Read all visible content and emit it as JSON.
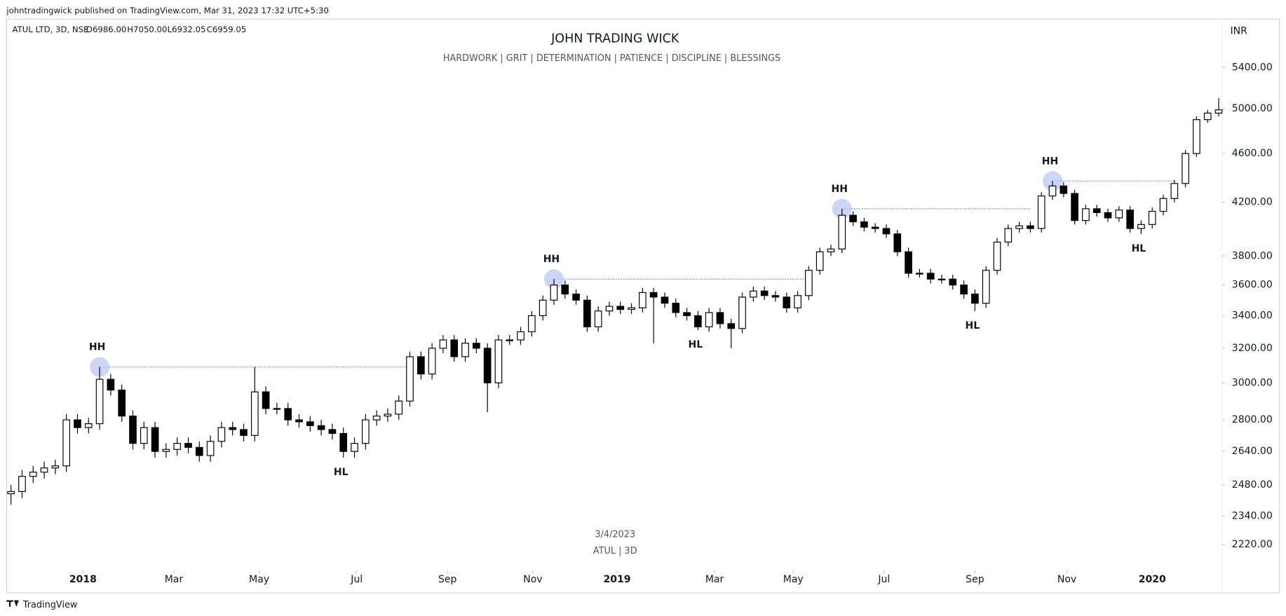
{
  "header": {
    "publisher": "johntradingwick published on TradingView.com, Mar 31, 2023 17:32 UTC+5:30",
    "footer": "TradingView"
  },
  "chart_data": {
    "type": "candlestick",
    "title": "JOHN TRADING WICK",
    "subtitle": "HARDWORK   |  GRIT  |  DETERMINATION   |   PATIENCE   |   DISCIPLINE  |  BLESSINGS",
    "symbol": "ATUL LTD, 3D, NSE",
    "ohlc_labels": [
      "O6986.00",
      "H7050.00",
      "L6932.05",
      "C6959.05"
    ],
    "currency": "INR",
    "watermark": [
      "3/4/2023",
      "ATUL  |  3D"
    ],
    "log_scale": true,
    "up_color": "#ffffff",
    "down_color": "#000000",
    "wick_color": "#000000",
    "level_color": "#6b8fd6",
    "circle_color": "#b9c8f2",
    "xlim": [
      -0.4,
      109.3
    ],
    "xticks": [
      {
        "value": 6.5,
        "label": "2018"
      },
      {
        "value": 14.7,
        "label": "Mar"
      },
      {
        "value": 22.4,
        "label": "May"
      },
      {
        "value": 31.2,
        "label": "Jul"
      },
      {
        "value": 39.4,
        "label": "Sep"
      },
      {
        "value": 47.1,
        "label": "Nov"
      },
      {
        "value": 54.7,
        "label": "2019"
      },
      {
        "value": 63.5,
        "label": "Mar"
      },
      {
        "value": 70.6,
        "label": "May"
      },
      {
        "value": 78.8,
        "label": "Jul"
      },
      {
        "value": 87.0,
        "label": "Sep"
      },
      {
        "value": 95.3,
        "label": "Nov"
      },
      {
        "value": 103.0,
        "label": "2020"
      }
    ],
    "ylim": [
      2130,
      5910
    ],
    "yticks": [
      {
        "value": 2220,
        "label": "2220.00"
      },
      {
        "value": 2340,
        "label": "2340.00"
      },
      {
        "value": 2480,
        "label": "2480.00"
      },
      {
        "value": 2640,
        "label": "2640.00"
      },
      {
        "value": 2800,
        "label": "2800.00"
      },
      {
        "value": 3000,
        "label": "3000.00"
      },
      {
        "value": 3200,
        "label": "3200.00"
      },
      {
        "value": 3400,
        "label": "3400.00"
      },
      {
        "value": 3600,
        "label": "3600.00"
      },
      {
        "value": 3800,
        "label": "3800.00"
      },
      {
        "value": 4200,
        "label": "4200.00"
      },
      {
        "value": 4600,
        "label": "4600.00"
      },
      {
        "value": 5000,
        "label": "5000.00"
      },
      {
        "value": 5400,
        "label": "5400.00"
      }
    ],
    "open": [
      2440,
      2450,
      2520,
      2540,
      2560,
      2570,
      2800,
      2760,
      2780,
      3020,
      2960,
      2820,
      2680,
      2760,
      2640,
      2650,
      2680,
      2660,
      2620,
      2690,
      2760,
      2750,
      2720,
      2950,
      2860,
      2860,
      2800,
      2790,
      2770,
      2750,
      2730,
      2640,
      2680,
      2800,
      2820,
      2830,
      2900,
      3150,
      3050,
      3200,
      3250,
      3150,
      3230,
      3200,
      3000,
      3250,
      3250,
      3300,
      3400,
      3500,
      3600,
      3540,
      3500,
      3330,
      3430,
      3460,
      3440,
      3450,
      3550,
      3520,
      3480,
      3420,
      3400,
      3330,
      3420,
      3350,
      3320,
      3520,
      3560,
      3530,
      3520,
      3450,
      3530,
      3700,
      3830,
      3850,
      4100,
      4050,
      4010,
      4000,
      3960,
      3830,
      3680,
      3680,
      3640,
      3640,
      3600,
      3540,
      3480,
      3700,
      3900,
      4000,
      4020,
      4000,
      4250,
      4330,
      4270,
      4060,
      4150,
      4120,
      4080,
      4140,
      4000,
      4030,
      4130,
      4230,
      4350,
      4600,
      4900,
      4960
    ],
    "high": [
      2480,
      2550,
      2570,
      2590,
      2600,
      2830,
      2830,
      2810,
      3090,
      3050,
      2990,
      2850,
      2790,
      2790,
      2680,
      2710,
      2710,
      2690,
      2720,
      2790,
      2790,
      2780,
      3090,
      2980,
      2890,
      2890,
      2830,
      2820,
      2800,
      2780,
      2760,
      2710,
      2830,
      2850,
      2860,
      2930,
      3180,
      3180,
      3230,
      3280,
      3280,
      3260,
      3260,
      3230,
      3280,
      3280,
      3330,
      3430,
      3530,
      3640,
      3630,
      3570,
      3530,
      3460,
      3490,
      3490,
      3480,
      3580,
      3580,
      3550,
      3510,
      3450,
      3430,
      3450,
      3450,
      3380,
      3550,
      3590,
      3590,
      3560,
      3550,
      3560,
      3730,
      3860,
      3880,
      4150,
      4130,
      4080,
      4040,
      4030,
      3990,
      3860,
      3710,
      3710,
      3670,
      3670,
      3630,
      3570,
      3730,
      3930,
      4030,
      4050,
      4050,
      4280,
      4370,
      4360,
      4300,
      4180,
      4180,
      4150,
      4170,
      4170,
      4060,
      4160,
      4260,
      4380,
      4630,
      4930,
      4990,
      5100
    ],
    "low": [
      2390,
      2420,
      2490,
      2510,
      2530,
      2540,
      2730,
      2730,
      2750,
      2930,
      2790,
      2650,
      2650,
      2610,
      2610,
      2620,
      2630,
      2590,
      2590,
      2660,
      2720,
      2690,
      2690,
      2830,
      2830,
      2770,
      2760,
      2740,
      2720,
      2700,
      2610,
      2610,
      2650,
      2770,
      2790,
      2800,
      2870,
      3020,
      3020,
      3170,
      3120,
      3120,
      3170,
      2840,
      2970,
      3220,
      3220,
      3270,
      3370,
      3470,
      3510,
      3470,
      3300,
      3300,
      3400,
      3410,
      3410,
      3420,
      3230,
      3450,
      3390,
      3370,
      3310,
      3300,
      3320,
      3200,
      3290,
      3490,
      3500,
      3490,
      3420,
      3420,
      3500,
      3670,
      3800,
      3820,
      4020,
      3980,
      3970,
      3930,
      3800,
      3650,
      3650,
      3610,
      3610,
      3570,
      3510,
      3430,
      3450,
      3670,
      3870,
      3970,
      3970,
      3970,
      4220,
      4240,
      4030,
      4030,
      4090,
      4050,
      4050,
      3970,
      3960,
      4000,
      4100,
      4200,
      4320,
      4570,
      4870,
      4930
    ],
    "close": [
      2450,
      2520,
      2540,
      2560,
      2570,
      2800,
      2760,
      2780,
      3020,
      2960,
      2820,
      2680,
      2760,
      2640,
      2650,
      2680,
      2660,
      2620,
      2690,
      2760,
      2750,
      2720,
      2950,
      2860,
      2860,
      2800,
      2790,
      2770,
      2750,
      2730,
      2640,
      2680,
      2800,
      2820,
      2830,
      2900,
      3150,
      3050,
      3200,
      3250,
      3150,
      3230,
      3200,
      3000,
      3250,
      3250,
      3300,
      3400,
      3500,
      3600,
      3540,
      3500,
      3330,
      3430,
      3460,
      3440,
      3450,
      3550,
      3520,
      3480,
      3420,
      3400,
      3330,
      3420,
      3350,
      3320,
      3520,
      3560,
      3530,
      3520,
      3450,
      3530,
      3700,
      3830,
      3850,
      4100,
      4050,
      4010,
      4000,
      3960,
      3830,
      3680,
      3680,
      3640,
      3640,
      3600,
      3540,
      3480,
      3700,
      3900,
      4000,
      4020,
      4000,
      4250,
      4330,
      4270,
      4060,
      4150,
      4120,
      4080,
      4140,
      4000,
      4030,
      4130,
      4230,
      4350,
      4600,
      4900,
      4960,
      4990
    ],
    "annotations": [
      {
        "label": "HH",
        "x": 8,
        "y": 3090,
        "level_to": 36
      },
      {
        "label": "HL",
        "x": 30,
        "y": 2610
      },
      {
        "label": "HH",
        "x": 49,
        "y": 3640,
        "level_to": 72
      },
      {
        "label": "HL",
        "x": 62,
        "y": 3310
      },
      {
        "label": "HH",
        "x": 75,
        "y": 4150,
        "level_to": 92
      },
      {
        "label": "HL",
        "x": 87,
        "y": 3430
      },
      {
        "label": "HH",
        "x": 94,
        "y": 4370,
        "level_to": 105
      },
      {
        "label": "HL",
        "x": 102,
        "y": 3960
      }
    ]
  }
}
